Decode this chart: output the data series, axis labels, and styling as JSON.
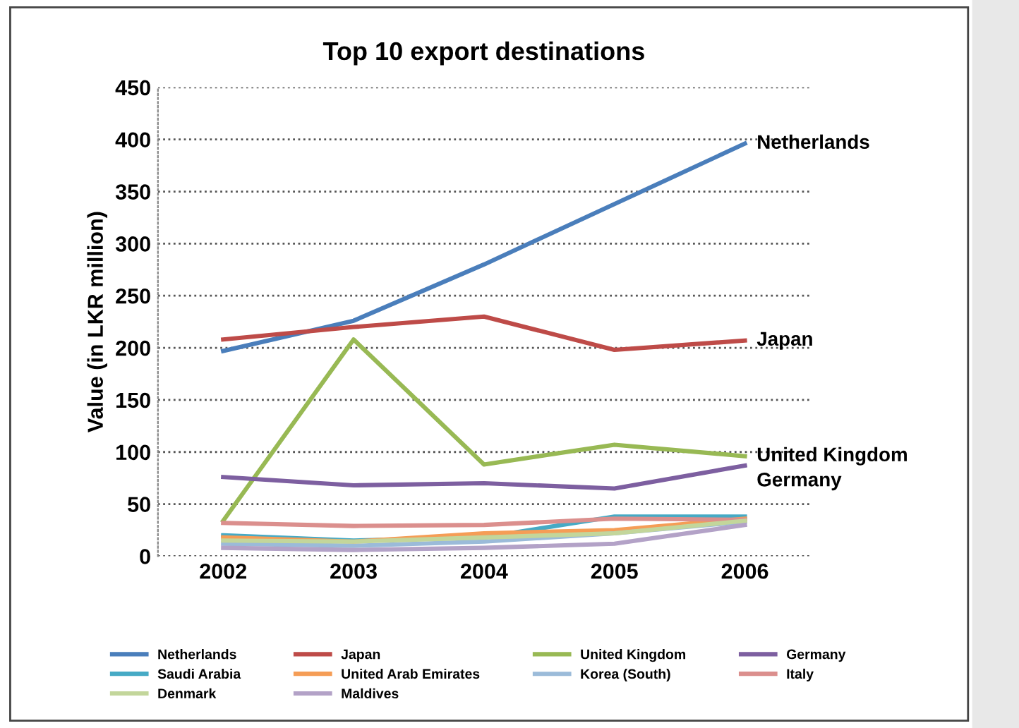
{
  "chart_data": {
    "type": "line",
    "title": "Top 10 export destinations",
    "ylabel": "Value (in LKR million)",
    "categories": [
      "2002",
      "2003",
      "2004",
      "2005",
      "2006"
    ],
    "series": [
      {
        "name": "Netherlands",
        "color": "#4a7ebb",
        "values": [
          197,
          226,
          280,
          338,
          396
        ]
      },
      {
        "name": "Japan",
        "color": "#be4b48",
        "values": [
          208,
          220,
          230,
          198,
          207
        ]
      },
      {
        "name": "United Kingdom",
        "color": "#98b954",
        "values": [
          34,
          208,
          88,
          107,
          96
        ]
      },
      {
        "name": "Germany",
        "color": "#7d5fa0",
        "values": [
          76,
          68,
          70,
          65,
          87
        ]
      },
      {
        "name": "Saudi Arabia",
        "color": "#46aac5",
        "values": [
          20,
          15,
          18,
          38,
          38
        ]
      },
      {
        "name": "United Arab Emirates",
        "color": "#f59d56",
        "values": [
          18,
          14,
          22,
          25,
          36
        ]
      },
      {
        "name": "Korea (South)",
        "color": "#9bbbd9",
        "values": [
          12,
          10,
          14,
          22,
          33
        ]
      },
      {
        "name": "Italy",
        "color": "#db8f8d",
        "values": [
          32,
          29,
          30,
          36,
          35
        ]
      },
      {
        "name": "Denmark",
        "color": "#c3d69b",
        "values": [
          15,
          14,
          18,
          22,
          34
        ]
      },
      {
        "name": "Maldives",
        "color": "#b3a2c7",
        "values": [
          8,
          6,
          8,
          12,
          30
        ]
      }
    ],
    "annotations": [
      {
        "text": "Netherlands",
        "x": "2006",
        "y": 396
      },
      {
        "text": "Japan",
        "x": "2006",
        "y": 207
      },
      {
        "text": "United Kingdom",
        "x": "2006",
        "y": 96
      },
      {
        "text": "Germany",
        "x": "2006",
        "y": 87
      }
    ],
    "ylim": [
      0,
      450
    ],
    "yticks": [
      0,
      50,
      100,
      150,
      200,
      250,
      300,
      350,
      400,
      450
    ],
    "grid": "y",
    "legend": "bottom",
    "marker": "none",
    "line_style": "solid"
  }
}
